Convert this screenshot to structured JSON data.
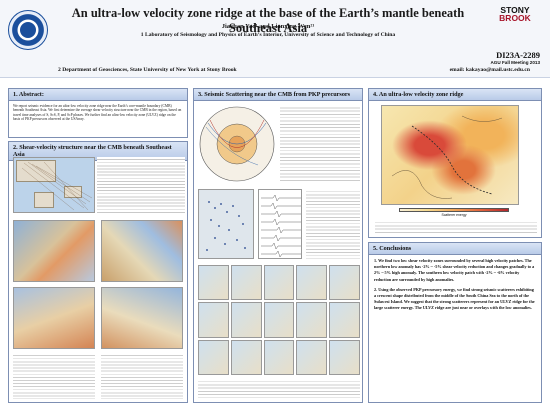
{
  "header": {
    "title": "An ultra-low velocity zone ridge at the base of the Earth’s mantle beneath Southeast Asia",
    "authors": "Jiayuan Yao¹ and Lianxing Wen²¹",
    "affiliation_1": "1 Laboratory of Seismology and Physics of Earth’s Interior, University of Science and Technology of China",
    "affiliation_2": "2 Department of Geosciences, State University of New York at Stony Brook",
    "email": "email: kakayao@mail.ustc.edu.cn",
    "logo_right_line1": "STONY",
    "logo_right_line2": "BROOK",
    "session_code": "DI23A-2289",
    "meeting": "AGU Fall Meeting 2013"
  },
  "sections": {
    "abstract_title": "1. Abstract:",
    "abstract_text": "We report seismic evidence for an ultra-low velocity zone ridge near the Earth’s core-mantle boundary (CMB) beneath Southeast Asia. We first determine the average shear velocity structure near the CMB in the region, based on travel time analyses of S, ScS, P, and ScP phases. We further find an ultra-low velocity zone (ULVZ) ridge on the basis of PKP precursors observed at the USArray.",
    "shear_title": "2. Shear-velocity structure near the CMB beneath Southeast Asia",
    "scatter_title": "3. Seismic Scattering near the CMB from PKP precursors",
    "ulvz_title": "4. An ultra-low velocity zone ridge",
    "conclusions_title": "5. Conclusions",
    "conclusion_1": "1. We find two low shear velocity zones surrounded by several high velocity patches. The northern low anomaly has -2% ~ -5% shear velocity reduction and changes gradually to a 2% ~ 5% high anomaly. The southern low velocity patch with -2% ~ -6% velocity reduction are surrounded by high anomalies.",
    "conclusion_2": "2. Using the observed PKP precursory energy, we find strong seismic scatterers exhibiting a crescent shape distributed from the middle of the South China Sea to the north of the Sulawesi Island. We suggest that the strong scatterers represent for an ULVZ ridge for the large scatterer energy. The ULVZ ridge are just near or overlays with the low anomalies.",
    "scale_label": "Scatterer energy"
  },
  "colors": {
    "header_bg": "#f4f6fa",
    "panel_border": "#7d8fb3",
    "panel_header": "#c8d7ef",
    "brand_red": "#a8152b"
  }
}
